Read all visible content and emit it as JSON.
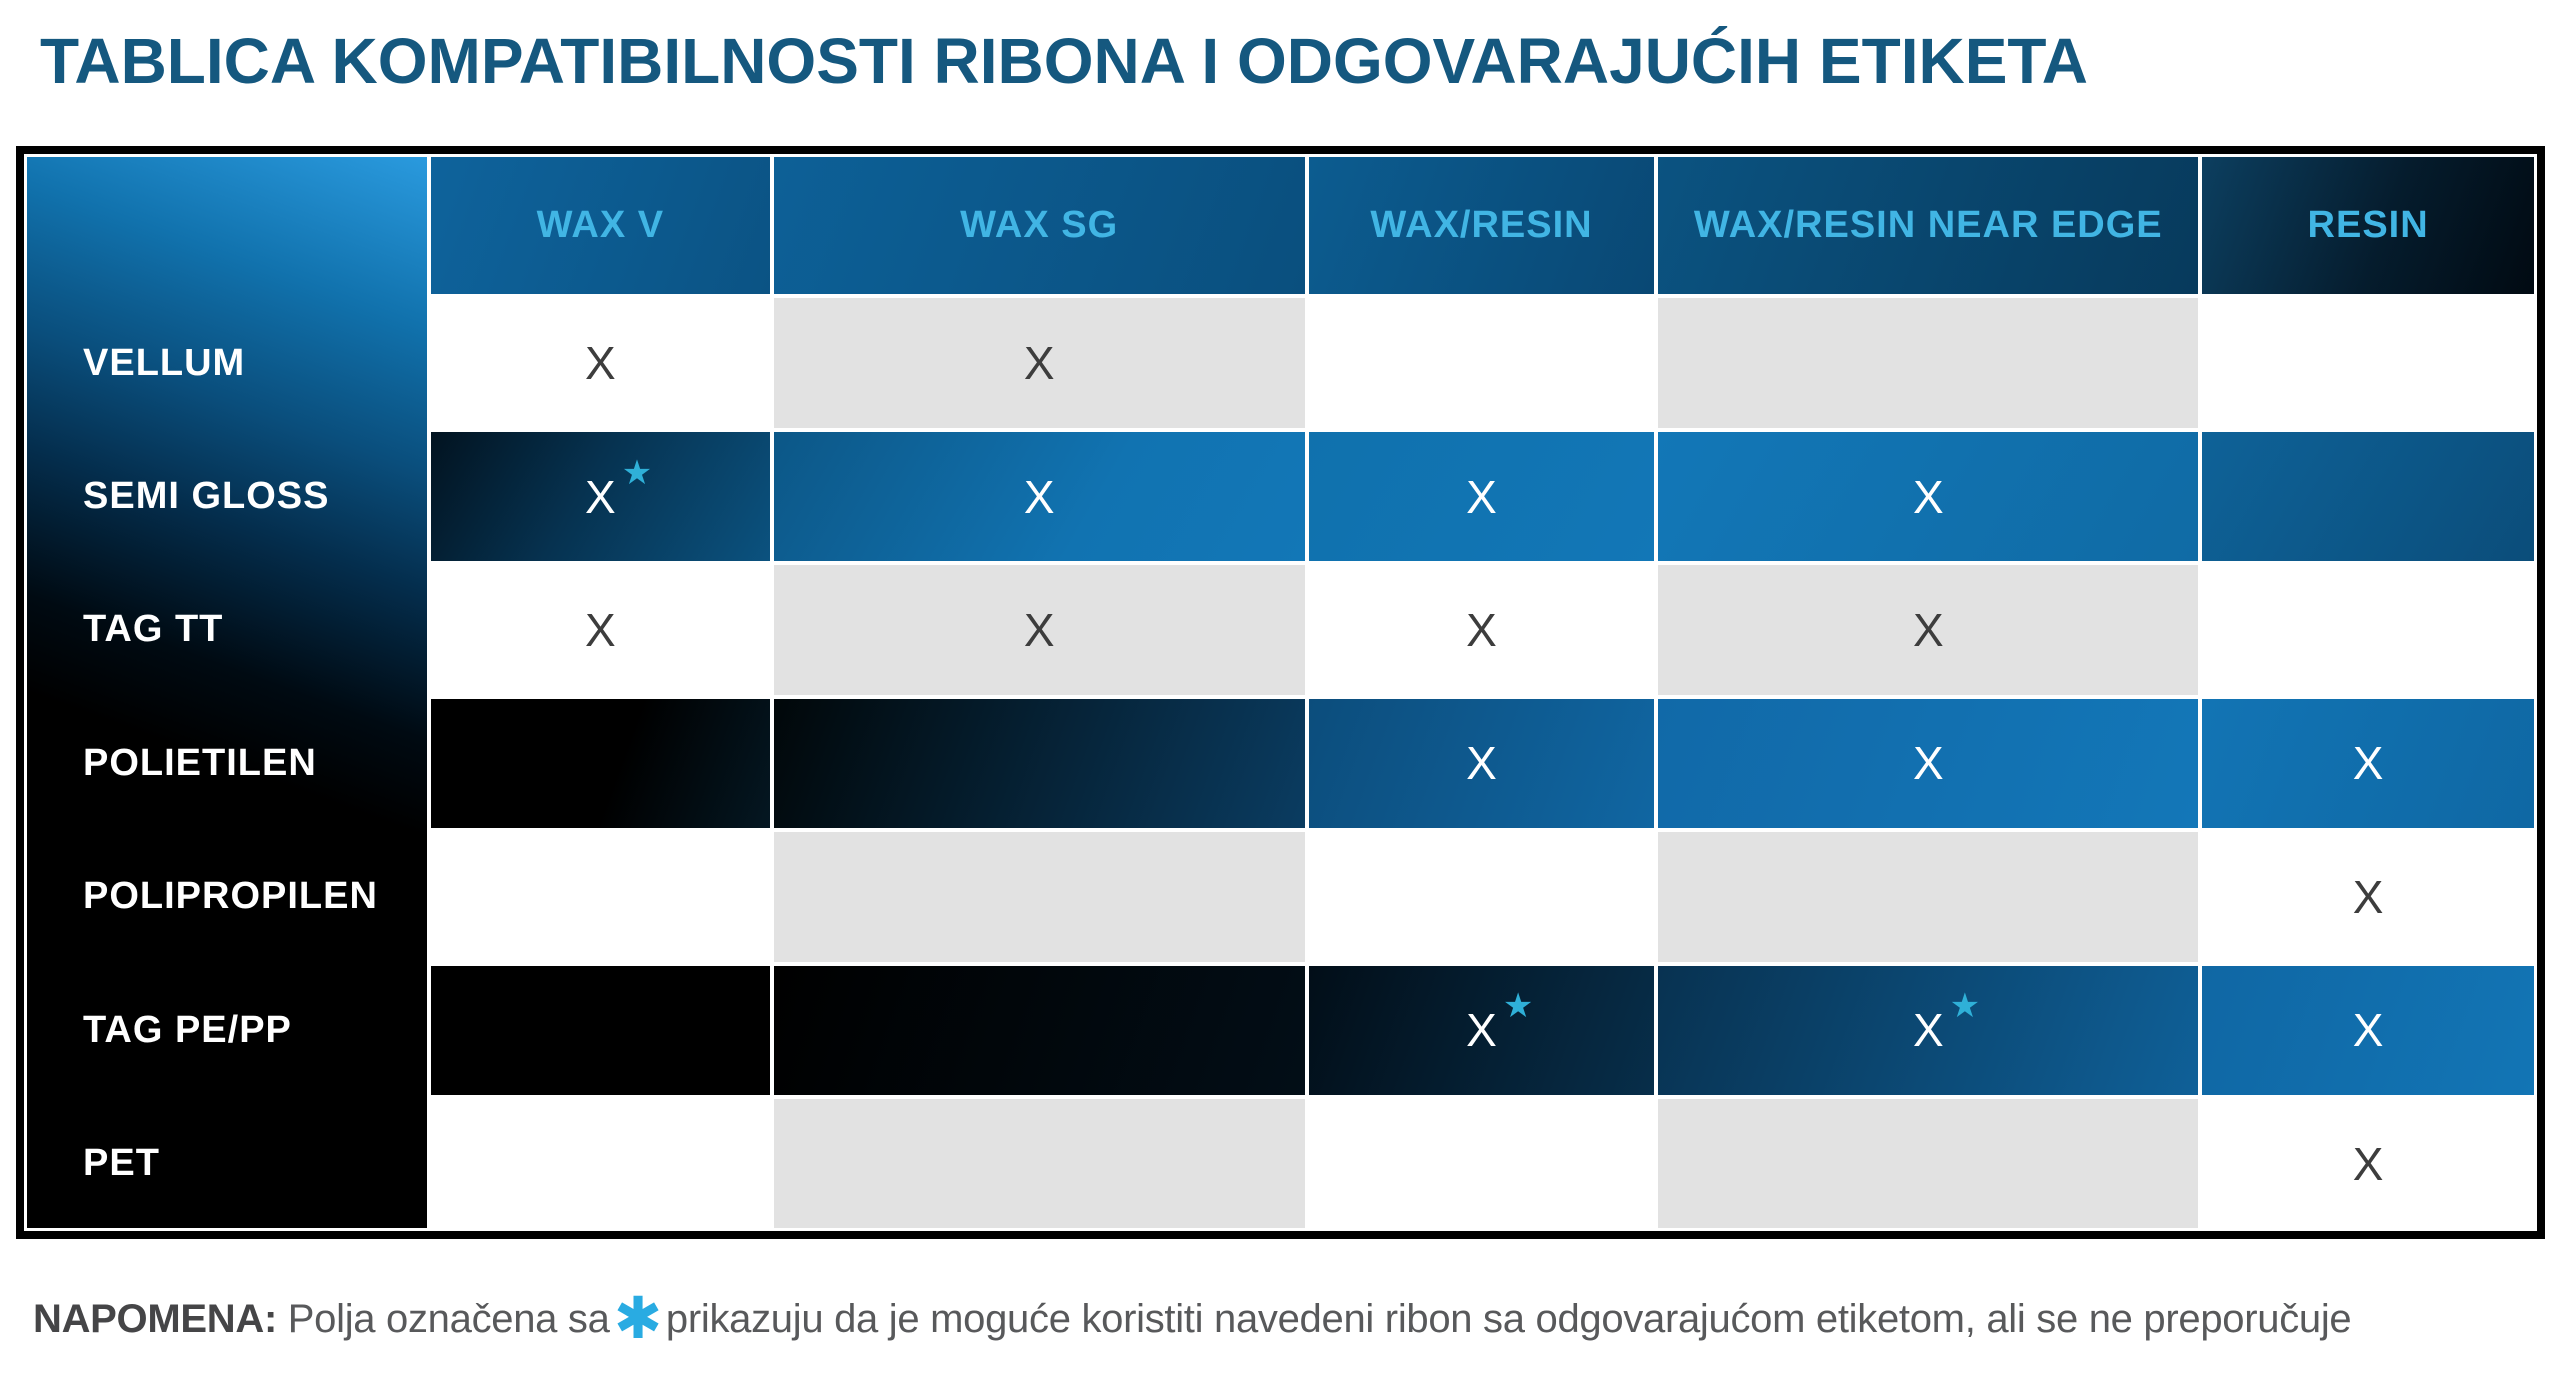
{
  "title": "TABLICA KOMPATIBILNOSTI RIBONA I ODGOVARAJUĆIH ETIKETA",
  "table": {
    "columns": [
      "WAX V",
      "WAX SG",
      "WAX/RESIN",
      "WAX/RESIN NEAR EDGE",
      "RESIN"
    ],
    "rows": [
      {
        "label": "VELLUM",
        "cells": [
          {
            "mark": "X"
          },
          {
            "mark": "X"
          },
          {},
          {},
          {}
        ]
      },
      {
        "label": "SEMI GLOSS",
        "cells": [
          {
            "mark": "X",
            "star": "★"
          },
          {
            "mark": "X"
          },
          {
            "mark": "X"
          },
          {
            "mark": "X"
          },
          {}
        ]
      },
      {
        "label": "TAG TT",
        "cells": [
          {
            "mark": "X"
          },
          {
            "mark": "X"
          },
          {
            "mark": "X"
          },
          {
            "mark": "X"
          },
          {}
        ]
      },
      {
        "label": "POLIETILEN",
        "cells": [
          {},
          {},
          {
            "mark": "X"
          },
          {
            "mark": "X"
          },
          {
            "mark": "X"
          }
        ]
      },
      {
        "label": "POLIPROPILEN",
        "cells": [
          {},
          {},
          {},
          {},
          {
            "mark": "X"
          }
        ]
      },
      {
        "label": "TAG PE/PP",
        "cells": [
          {},
          {},
          {
            "mark": "X",
            "star": "★"
          },
          {
            "mark": "X",
            "star": "★"
          },
          {
            "mark": "X"
          }
        ]
      },
      {
        "label": "PET",
        "cells": [
          {},
          {},
          {},
          {},
          {
            "mark": "X"
          }
        ]
      }
    ]
  },
  "note": {
    "label": "NAPOMENA:",
    "text_before_star": " Polja označena sa",
    "star": "✱",
    "text_after_star": "prikazuju da je moguće koristiti navedeni ribon sa odgovarajućom etiketom, ali se ne preporučuje"
  },
  "colors": {
    "title_blue": "#15587f",
    "header_text_cyan": "#41b5e4",
    "star_cyan": "#29abe2",
    "bright_blue": "#1173b2",
    "cell_gray": "#e2e2e2",
    "x_dark": "#3d3d3d",
    "note_gray": "#58595b"
  }
}
